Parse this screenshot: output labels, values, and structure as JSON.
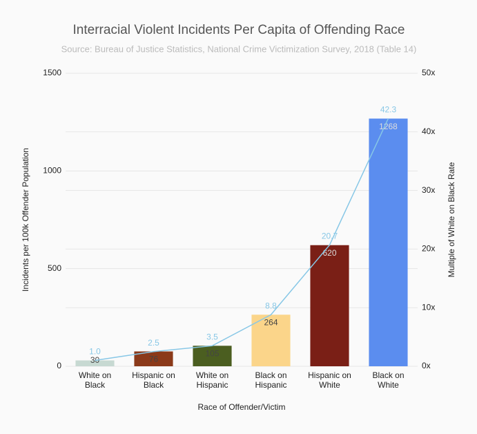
{
  "chart_data": {
    "type": "bar_line",
    "title": "Interracial Violent Incidents Per Capita of Offending Race",
    "subtitle": "Source: Bureau of Justice Statistics, National Crime Victimization Survey, 2018 (Table 14)",
    "x_label": "Race of Offender/Victim",
    "y_label": "Incidents per 100k Offender Population",
    "y2_label": "Multiple of White on Black Rate",
    "categories": [
      "White on\nBlack",
      "Hispanic on\nBlack",
      "White on\nHispanic",
      "Black on\nHispanic",
      "Hispanic on\nWhite",
      "Black on\nWhite"
    ],
    "bars": {
      "values": [
        30,
        76,
        105,
        264,
        620,
        1268
      ],
      "colors": [
        "#c7d9d2",
        "#8b3a1a",
        "#4b5e20",
        "#fbd58a",
        "#7a1f16",
        "#5b8def"
      ]
    },
    "multiple": {
      "axis": "y2",
      "color": "#87c7e6",
      "values": [
        1,
        2.5,
        3.5,
        8.8,
        20.7,
        42.3
      ],
      "value_labels": [
        "1.0",
        "2.5",
        "3.5",
        "8.8",
        "20.7",
        "42.3"
      ]
    },
    "ylim": [
      0,
      1500
    ],
    "yticks": [
      0,
      500,
      1000,
      1500
    ],
    "y2lim": [
      0,
      50
    ],
    "y2ticks": [
      {
        "value": 0,
        "label": "0x"
      },
      {
        "value": 10,
        "label": "10x"
      },
      {
        "value": 20,
        "label": "20x"
      },
      {
        "value": 30,
        "label": "30x"
      },
      {
        "value": 40,
        "label": "40x"
      },
      {
        "value": 50,
        "label": "50x"
      }
    ],
    "grid": true
  }
}
